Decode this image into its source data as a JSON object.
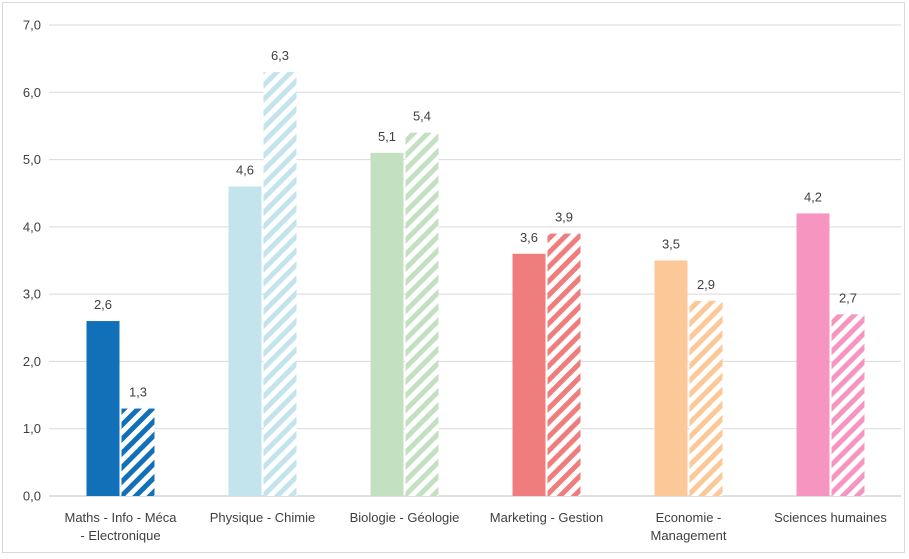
{
  "chart_data": {
    "type": "bar",
    "title": "",
    "xlabel": "",
    "ylabel": "",
    "ylim": [
      0,
      7
    ],
    "yticks": [
      0,
      1,
      2,
      3,
      4,
      5,
      6,
      7
    ],
    "ytick_labels": [
      "0,0",
      "1,0",
      "2,0",
      "3,0",
      "4,0",
      "5,0",
      "6,0",
      "7,0"
    ],
    "grid": true,
    "legend": "none",
    "categories": [
      {
        "lines": [
          "Maths - Info - Méca",
          "- Electronique"
        ]
      },
      {
        "lines": [
          "Physique - Chimie"
        ]
      },
      {
        "lines": [
          "Biologie - Géologie"
        ]
      },
      {
        "lines": [
          "Marketing - Gestion"
        ]
      },
      {
        "lines": [
          "Economie -",
          "Management"
        ]
      },
      {
        "lines": [
          "Sciences humaines"
        ]
      }
    ],
    "series": [
      {
        "style": "solid",
        "values": [
          2.6,
          4.6,
          5.1,
          3.6,
          3.5,
          4.2
        ],
        "labels": [
          "2,6",
          "4,6",
          "5,1",
          "3,6",
          "3,5",
          "4,2"
        ]
      },
      {
        "style": "hatched",
        "values": [
          1.3,
          6.3,
          5.4,
          3.9,
          2.9,
          2.7
        ],
        "labels": [
          "1,3",
          "6,3",
          "5,4",
          "3,9",
          "2,9",
          "2,7"
        ]
      }
    ],
    "colors": [
      "#1170b8",
      "#c3e4ed",
      "#c3e0c0",
      "#f07d7d",
      "#fdc898",
      "#f595c0"
    ]
  }
}
